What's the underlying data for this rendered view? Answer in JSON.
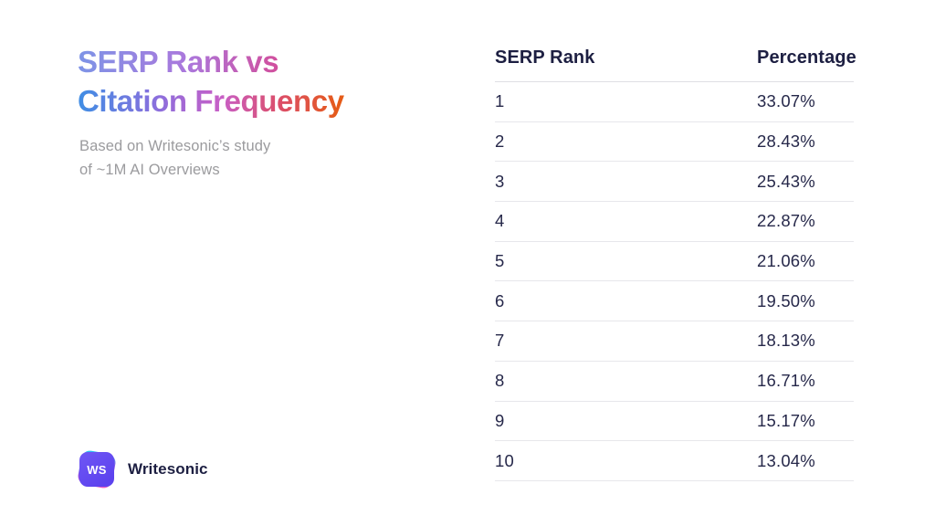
{
  "header": {
    "title_line1": "SERP Rank vs",
    "title_line2": "Citation Frequency",
    "subtitle_line1": "Based on Writesonic’s study",
    "subtitle_line2": "of ~1M AI Overviews"
  },
  "table": {
    "headers": [
      "SERP Rank",
      "Percentage"
    ],
    "rows": [
      {
        "rank": "1",
        "percentage": "33.07%"
      },
      {
        "rank": "2",
        "percentage": "28.43%"
      },
      {
        "rank": "3",
        "percentage": "25.43%"
      },
      {
        "rank": "4",
        "percentage": "22.87%"
      },
      {
        "rank": "5",
        "percentage": "21.06%"
      },
      {
        "rank": "6",
        "percentage": "19.50%"
      },
      {
        "rank": "7",
        "percentage": "18.13%"
      },
      {
        "rank": "8",
        "percentage": "16.71%"
      },
      {
        "rank": "9",
        "percentage": "15.17%"
      },
      {
        "rank": "10",
        "percentage": "13.04%"
      }
    ]
  },
  "logo": {
    "badge": "WS",
    "name": "Writesonic"
  },
  "colors": {
    "background": "#ffffff",
    "title_gradient_line1": [
      "#7f93e6",
      "#ab77dc",
      "#d0509f"
    ],
    "title_gradient_line2": [
      "#3f8ee4",
      "#8b6fdd",
      "#c85fc6",
      "#dc4e68",
      "#e55b18"
    ],
    "subtitle_text": "#9b9b9e",
    "heading_text": "#1d1f42",
    "cell_text": "#26284a",
    "divider": "#dfdfe4",
    "divider_row": "#e7e7eb",
    "logo_badge_front": "#5c42ee",
    "logo_badge_gradient": [
      "#27c6f2",
      "#8a48e8",
      "#f05ac0"
    ]
  },
  "chart_data": {
    "type": "table",
    "title": "SERP Rank vs Citation Frequency",
    "subtitle": "Based on Writesonic’s study of ~1M AI Overviews",
    "columns": [
      "SERP Rank",
      "Percentage"
    ],
    "x": [
      1,
      2,
      3,
      4,
      5,
      6,
      7,
      8,
      9,
      10
    ],
    "values": [
      33.07,
      28.43,
      25.43,
      22.87,
      21.06,
      19.5,
      18.13,
      16.71,
      15.17,
      13.04
    ],
    "unit": "%",
    "xlabel": "SERP Rank",
    "ylabel": "Percentage"
  }
}
